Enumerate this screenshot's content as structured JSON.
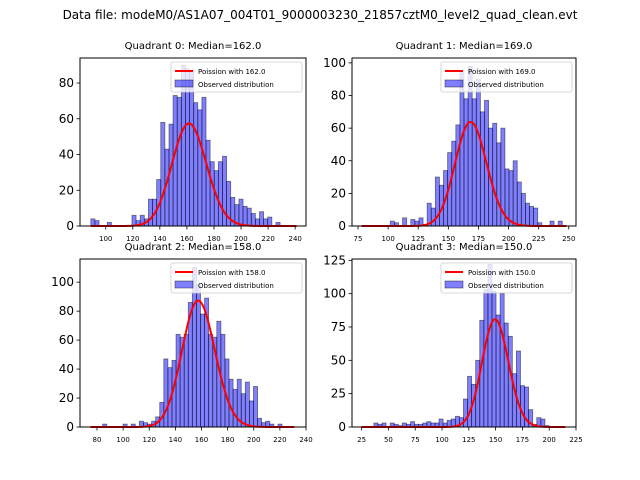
{
  "suptitle": "Data file: modeM0/AS1A07_004T01_9000003230_21857cztM0_level2_quad_clean.evt",
  "colors": {
    "bar_fill": "#0000ff",
    "bar_edge": "#000000",
    "curve": "#ff0000"
  },
  "chart_data": [
    {
      "type": "bar",
      "title": "Quadrant 0: Median=162.0",
      "legend": [
        "Poission with 162.0",
        "Observed distribution"
      ],
      "legend_position": "top-right",
      "xlim": [
        81,
        248
      ],
      "ylim": [
        0,
        94
      ],
      "xticks": [
        100,
        120,
        140,
        160,
        180,
        200,
        220,
        240
      ],
      "yticks": [
        0,
        20,
        40,
        60,
        80
      ],
      "bin_start": 89,
      "bin_width": 3.04,
      "values": [
        4,
        3,
        0,
        0,
        2,
        0,
        0,
        0,
        0,
        0,
        6,
        3,
        6,
        4,
        15,
        15,
        26,
        58,
        43,
        57,
        73,
        72,
        90,
        88,
        87,
        69,
        65,
        72,
        48,
        36,
        31,
        36,
        39,
        25,
        16,
        12,
        15,
        11,
        10,
        7,
        4,
        8,
        4,
        5,
        0,
        2,
        0,
        0,
        0,
        0
      ],
      "poisson_mean": 162.0,
      "poisson_scale": 1830
    },
    {
      "type": "bar",
      "title": "Quadrant 1: Median=169.0",
      "legend": [
        "Poission with 169.0",
        "Observed distribution"
      ],
      "legend_position": "top-right",
      "xlim": [
        70,
        256
      ],
      "ylim": [
        0,
        103
      ],
      "xticks": [
        75,
        100,
        125,
        150,
        175,
        200,
        225,
        250
      ],
      "yticks": [
        0,
        20,
        40,
        60,
        80,
        100
      ],
      "bin_start": 78,
      "bin_width": 3.4,
      "values": [
        0,
        0,
        0,
        0,
        0,
        0,
        0,
        3,
        2,
        0,
        5,
        0,
        4,
        3,
        5,
        1,
        14,
        11,
        30,
        25,
        34,
        45,
        52,
        62,
        94,
        78,
        98,
        78,
        90,
        70,
        77,
        60,
        63,
        51,
        60,
        35,
        34,
        40,
        27,
        20,
        14,
        12,
        11,
        2,
        0,
        0,
        3,
        0,
        3,
        0
      ],
      "poisson_mean": 169.0,
      "poisson_scale": 2080
    },
    {
      "type": "bar",
      "title": "Quadrant 2: Median=158.0",
      "legend": [
        "Poission with 158.0",
        "Observed distribution"
      ],
      "legend_position": "top-right",
      "xlim": [
        67,
        240
      ],
      "ylim": [
        0,
        116
      ],
      "xticks": [
        80,
        100,
        120,
        140,
        160,
        180,
        200,
        220,
        240
      ],
      "yticks": [
        0,
        20,
        40,
        60,
        80,
        100
      ],
      "bin_start": 75,
      "bin_width": 3.12,
      "values": [
        0,
        0,
        0,
        2,
        0,
        0,
        0,
        0,
        2,
        0,
        2,
        0,
        4,
        3,
        2,
        4,
        7,
        17,
        47,
        41,
        46,
        64,
        62,
        64,
        86,
        110,
        98,
        78,
        89,
        64,
        62,
        73,
        64,
        47,
        33,
        26,
        33,
        23,
        31,
        18,
        28,
        6,
        3,
        4,
        2,
        0,
        2,
        0,
        0,
        0
      ],
      "poisson_mean": 158.0,
      "poisson_scale": 2750
    },
    {
      "type": "bar",
      "title": "Quadrant 3: Median=150.0",
      "legend": [
        "Poission with 150.0",
        "Observed distribution"
      ],
      "legend_position": "top-right",
      "xlim": [
        16,
        225
      ],
      "ylim": [
        0,
        126
      ],
      "xticks": [
        25,
        50,
        75,
        100,
        125,
        150,
        175,
        200,
        225
      ],
      "yticks": [
        0,
        25,
        50,
        75,
        100,
        125
      ],
      "bin_start": 25,
      "bin_width": 3.8,
      "values": [
        0,
        0,
        0,
        3,
        2,
        3,
        0,
        3,
        2,
        1,
        3,
        2,
        4,
        2,
        2,
        3,
        4,
        3,
        3,
        6,
        3,
        5,
        6,
        8,
        7,
        21,
        38,
        32,
        50,
        80,
        103,
        122,
        102,
        84,
        100,
        78,
        68,
        40,
        57,
        31,
        30,
        13,
        2,
        7,
        6,
        1,
        0,
        0,
        0,
        0
      ],
      "poisson_mean": 150.0,
      "poisson_scale": 2480
    }
  ]
}
